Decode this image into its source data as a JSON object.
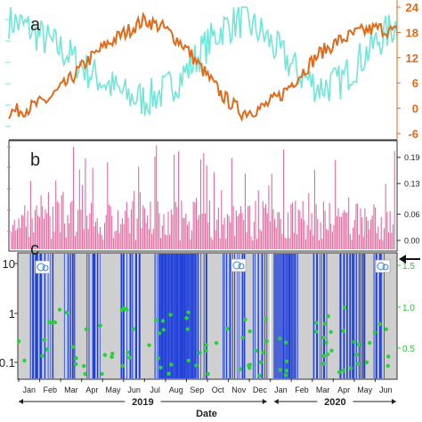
{
  "panel_labels": {
    "a": "a",
    "b": "b",
    "c": "c"
  },
  "colors": {
    "cyan": "#6fe6d8",
    "orange": "#e06a1a",
    "pink": "#e06aa0",
    "blue": "#1f3fd9",
    "green": "#27d13a",
    "grey": "#cccccc"
  },
  "chart_data": [
    {
      "type": "line",
      "panel": "a",
      "right_axis": {
        "ticks": [
          "-6",
          "0",
          "6",
          "12",
          "18",
          "24"
        ],
        "ylim": [
          -6,
          24
        ]
      },
      "series": [
        {
          "color": "cyan",
          "x": [
            0,
            0.05,
            0.1,
            0.15,
            0.2,
            0.25,
            0.3,
            0.35,
            0.4,
            0.45,
            0.5,
            0.55,
            0.6,
            0.65,
            0.7,
            0.75,
            0.8,
            0.85,
            0.9,
            0.95,
            1.0
          ],
          "values": [
            21,
            19,
            16,
            13,
            9,
            6,
            3,
            2,
            4,
            8,
            14,
            19,
            21,
            18,
            13,
            8,
            5,
            6,
            11,
            16,
            20
          ]
        },
        {
          "color": "orange",
          "x": [
            0,
            0.05,
            0.1,
            0.15,
            0.2,
            0.25,
            0.3,
            0.35,
            0.4,
            0.45,
            0.5,
            0.55,
            0.6,
            0.65,
            0.7,
            0.75,
            0.8,
            0.85,
            0.9,
            0.95,
            1.0
          ],
          "values": [
            -1,
            0,
            2,
            6,
            11,
            15,
            18,
            21,
            19,
            15,
            9,
            3,
            -1,
            0,
            3,
            8,
            13,
            16,
            18,
            19,
            18
          ]
        }
      ]
    },
    {
      "type": "bar",
      "panel": "b",
      "right_axis": {
        "ticks": [
          "0.00",
          "0.06",
          "0.13",
          "0.19"
        ],
        "ylim": [
          0,
          0.22
        ]
      },
      "color": "pink",
      "bars": 260
    },
    {
      "type": "scatter",
      "panel": "c",
      "left_axis": {
        "ticks": [
          "10",
          "1",
          "0.1"
        ],
        "scale": "log"
      },
      "right_axis": {
        "ticks": [
          "0.5",
          "1.0",
          "1.5"
        ],
        "ylim": [
          0.3,
          1.6
        ]
      },
      "colors": {
        "bars": "blue",
        "points": "green",
        "background": "grey"
      },
      "months": [
        "Jan",
        "Feb",
        "Mar",
        "Apr",
        "May",
        "Jun",
        "Jul",
        "Aug",
        "Sep",
        "Oct",
        "Nov",
        "Dec",
        "Jan",
        "Feb",
        "Mar",
        "Apr",
        "May",
        "Jun"
      ],
      "years": [
        "2019",
        "2020"
      ],
      "xlabel": "Date"
    }
  ]
}
